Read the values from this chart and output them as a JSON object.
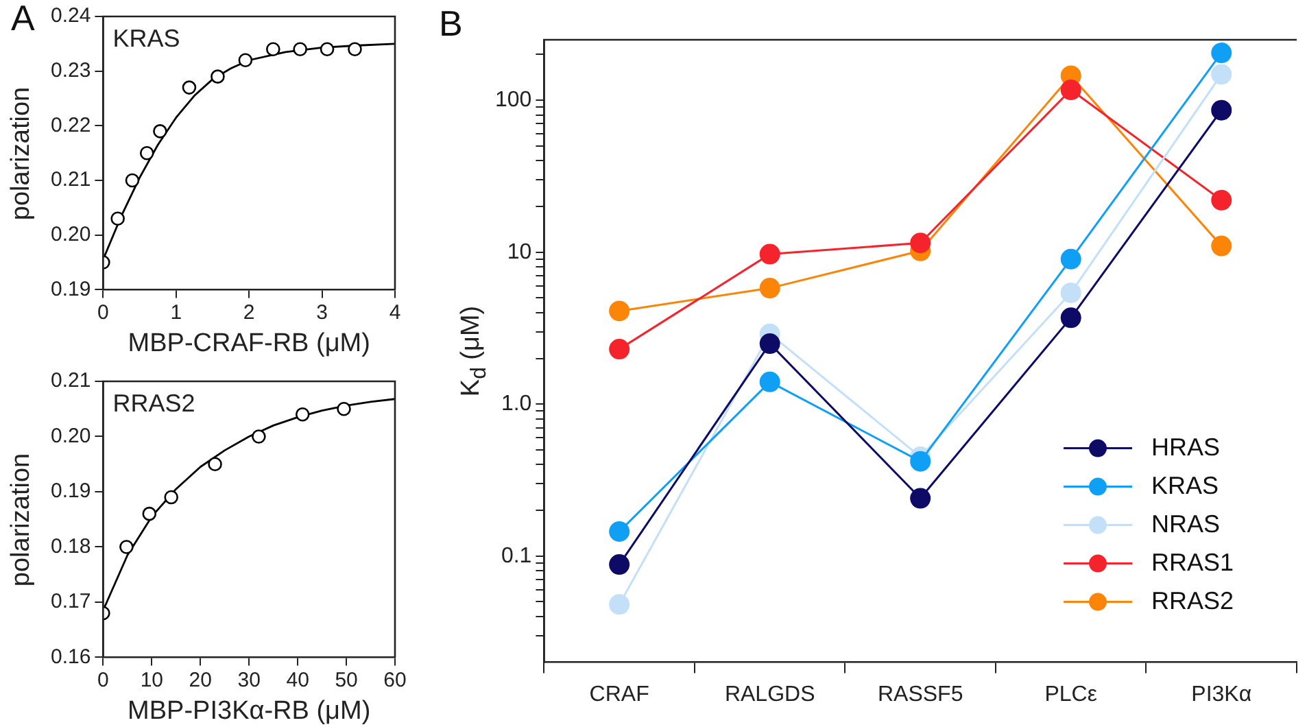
{
  "chart_data": [
    {
      "type": "scatter",
      "xlabel": "MBP-CRAF-RB (μM)",
      "ylabel": "polarization",
      "annotations": [
        "A"
      ],
      "marker": "circle",
      "legend": false,
      "xlim": [
        0,
        4
      ],
      "xticks": [
        0,
        1,
        2,
        3,
        4
      ],
      "ylim": [
        0.19,
        0.24
      ],
      "yticks": [
        0.19,
        {
          "value": 0.2,
          "label": "0.20"
        },
        0.21,
        0.22,
        0.23,
        0.24
      ],
      "series": [
        {
          "name": "KRAS",
          "type": "scatter",
          "color": "#000000",
          "x": [
            0,
            0.2,
            0.4,
            0.6,
            0.78,
            1.18,
            1.57,
            1.95,
            2.33,
            2.7,
            3.07,
            3.45
          ],
          "values": [
            0.195,
            0.203,
            0.21,
            0.215,
            0.219,
            0.227,
            0.229,
            0.232,
            0.234,
            0.234,
            0.234,
            0.234
          ]
        },
        {
          "type": "line",
          "marker": "none",
          "color": "#000000",
          "x": [
            0,
            0.25,
            0.5,
            0.75,
            1.0,
            1.25,
            1.5,
            1.75,
            2.0,
            2.5,
            3.0,
            3.5,
            4.0
          ],
          "values": [
            0.1955,
            0.2035,
            0.2105,
            0.2165,
            0.2215,
            0.2255,
            0.2285,
            0.2305,
            0.232,
            0.2335,
            0.2343,
            0.2347,
            0.235
          ]
        }
      ]
    },
    {
      "type": "scatter",
      "xlabel": "MBP-PI3Kα-RB (μM)",
      "ylabel": "polarization",
      "marker": "circle",
      "legend": false,
      "xlim": [
        0,
        60
      ],
      "xticks": [
        0,
        10,
        20,
        30,
        40,
        50,
        60
      ],
      "ylim": [
        0.16,
        0.21
      ],
      "yticks": [
        0.16,
        0.17,
        0.18,
        0.19,
        {
          "value": 0.2,
          "label": "0.20"
        },
        0.21
      ],
      "series": [
        {
          "name": "RRAS2",
          "type": "scatter",
          "color": "#000000",
          "x": [
            0,
            4.8,
            9.5,
            14,
            23,
            32,
            41,
            49.5
          ],
          "values": [
            0.168,
            0.18,
            0.186,
            0.189,
            0.195,
            0.2,
            0.204,
            0.205
          ]
        },
        {
          "type": "line",
          "marker": "none",
          "color": "#000000",
          "x": [
            0,
            5,
            10,
            15,
            20,
            25,
            30,
            35,
            40,
            45,
            50,
            55,
            60
          ],
          "values": [
            0.1685,
            0.1785,
            0.1855,
            0.1905,
            0.1945,
            0.1975,
            0.2,
            0.202,
            0.2035,
            0.2047,
            0.2056,
            0.2063,
            0.2068
          ]
        }
      ]
    },
    {
      "type": "line",
      "ylabel": "K$_{d}$ (μM)",
      "annotations": [
        "B"
      ],
      "marker": "circle",
      "legend": "bottom right",
      "log": "y",
      "categories": [
        "CRAF",
        "RALGDS",
        "RASSF5",
        "PLCε",
        "PI3Kα"
      ],
      "ylim": [
        0.02,
        250
      ],
      "yticks": [
        {
          "value": 0.03,
          "label": null
        },
        {
          "value": 0.04,
          "label": null
        },
        {
          "value": 0.05,
          "label": null
        },
        {
          "value": 0.06,
          "label": null
        },
        {
          "value": 0.07,
          "label": null
        },
        {
          "value": 0.08,
          "label": null
        },
        {
          "value": 0.09,
          "label": null
        },
        0.1,
        {
          "value": 0.2,
          "label": null
        },
        {
          "value": 0.3,
          "label": null
        },
        {
          "value": 0.4,
          "label": null
        },
        {
          "value": 0.5,
          "label": null
        },
        {
          "value": 0.6,
          "label": null
        },
        {
          "value": 0.7,
          "label": null
        },
        {
          "value": 0.8,
          "label": null
        },
        {
          "value": 0.9,
          "label": null
        },
        {
          "value": 1,
          "label": "1.0"
        },
        {
          "value": 2,
          "label": null
        },
        {
          "value": 3,
          "label": null
        },
        {
          "value": 4,
          "label": null
        },
        {
          "value": 5,
          "label": null
        },
        {
          "value": 6,
          "label": null
        },
        {
          "value": 7,
          "label": null
        },
        {
          "value": 8,
          "label": null
        },
        {
          "value": 9,
          "label": null
        },
        10,
        {
          "value": 20,
          "label": null
        },
        {
          "value": 30,
          "label": null
        },
        {
          "value": 40,
          "label": null
        },
        {
          "value": 50,
          "label": null
        },
        {
          "value": 60,
          "label": null
        },
        {
          "value": 70,
          "label": null
        },
        {
          "value": 80,
          "label": null
        },
        {
          "value": 90,
          "label": null
        },
        100,
        {
          "value": 200,
          "label": null
        }
      ],
      "series": [
        {
          "name": "HRAS",
          "color": "#0d0b66",
          "values": [
            0.088,
            2.5,
            0.24,
            3.7,
            86
          ]
        },
        {
          "name": "KRAS",
          "color": "#0fa0f5",
          "values": [
            0.145,
            1.4,
            0.42,
            9,
            205
          ]
        },
        {
          "name": "NRAS",
          "color": "#c4dff8",
          "values": [
            0.048,
            2.9,
            0.45,
            5.4,
            148
          ]
        },
        {
          "name": "RRAS1",
          "color": "#f5242c",
          "values": [
            2.3,
            9.7,
            11.5,
            117,
            22
          ]
        },
        {
          "name": "RRAS2",
          "color": "#fb8508",
          "values": [
            4.1,
            5.8,
            10.2,
            145,
            11
          ]
        }
      ]
    }
  ]
}
